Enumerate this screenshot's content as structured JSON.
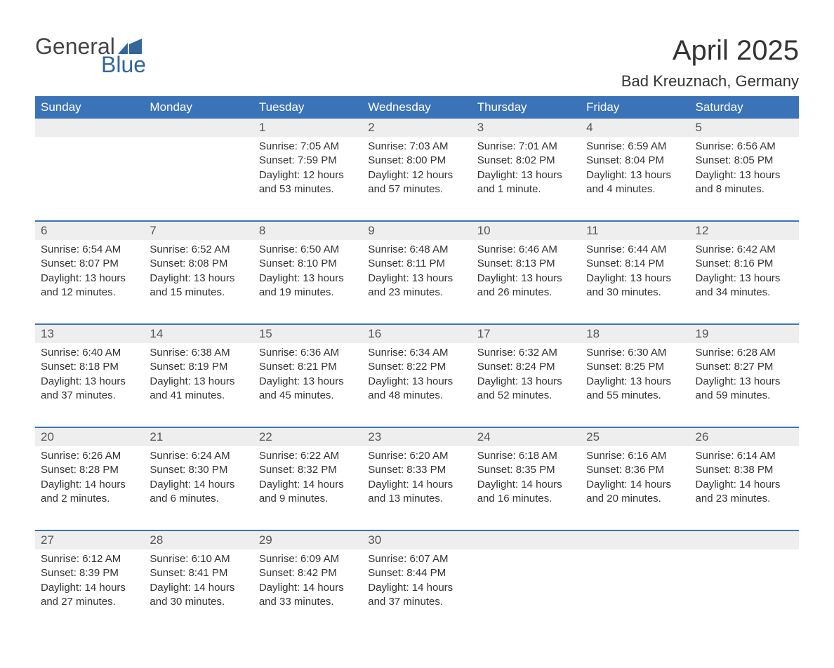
{
  "brand": {
    "part1": "General",
    "part2": "Blue",
    "accent_color": "#336699"
  },
  "title": "April 2025",
  "location": "Bad Kreuznach, Germany",
  "header_bg": "#3b73b9",
  "num_row_bg": "#eeeeee",
  "text_color": "#333333",
  "columns": [
    "Sunday",
    "Monday",
    "Tuesday",
    "Wednesday",
    "Thursday",
    "Friday",
    "Saturday"
  ],
  "weeks": [
    {
      "nums": [
        "",
        "",
        "1",
        "2",
        "3",
        "4",
        "5"
      ],
      "cells": [
        null,
        null,
        {
          "sunrise": "7:05 AM",
          "sunset": "7:59 PM",
          "daylight": "12 hours and 53 minutes."
        },
        {
          "sunrise": "7:03 AM",
          "sunset": "8:00 PM",
          "daylight": "12 hours and 57 minutes."
        },
        {
          "sunrise": "7:01 AM",
          "sunset": "8:02 PM",
          "daylight": "13 hours and 1 minute."
        },
        {
          "sunrise": "6:59 AM",
          "sunset": "8:04 PM",
          "daylight": "13 hours and 4 minutes."
        },
        {
          "sunrise": "6:56 AM",
          "sunset": "8:05 PM",
          "daylight": "13 hours and 8 minutes."
        }
      ]
    },
    {
      "nums": [
        "6",
        "7",
        "8",
        "9",
        "10",
        "11",
        "12"
      ],
      "cells": [
        {
          "sunrise": "6:54 AM",
          "sunset": "8:07 PM",
          "daylight": "13 hours and 12 minutes."
        },
        {
          "sunrise": "6:52 AM",
          "sunset": "8:08 PM",
          "daylight": "13 hours and 15 minutes."
        },
        {
          "sunrise": "6:50 AM",
          "sunset": "8:10 PM",
          "daylight": "13 hours and 19 minutes."
        },
        {
          "sunrise": "6:48 AM",
          "sunset": "8:11 PM",
          "daylight": "13 hours and 23 minutes."
        },
        {
          "sunrise": "6:46 AM",
          "sunset": "8:13 PM",
          "daylight": "13 hours and 26 minutes."
        },
        {
          "sunrise": "6:44 AM",
          "sunset": "8:14 PM",
          "daylight": "13 hours and 30 minutes."
        },
        {
          "sunrise": "6:42 AM",
          "sunset": "8:16 PM",
          "daylight": "13 hours and 34 minutes."
        }
      ]
    },
    {
      "nums": [
        "13",
        "14",
        "15",
        "16",
        "17",
        "18",
        "19"
      ],
      "cells": [
        {
          "sunrise": "6:40 AM",
          "sunset": "8:18 PM",
          "daylight": "13 hours and 37 minutes."
        },
        {
          "sunrise": "6:38 AM",
          "sunset": "8:19 PM",
          "daylight": "13 hours and 41 minutes."
        },
        {
          "sunrise": "6:36 AM",
          "sunset": "8:21 PM",
          "daylight": "13 hours and 45 minutes."
        },
        {
          "sunrise": "6:34 AM",
          "sunset": "8:22 PM",
          "daylight": "13 hours and 48 minutes."
        },
        {
          "sunrise": "6:32 AM",
          "sunset": "8:24 PM",
          "daylight": "13 hours and 52 minutes."
        },
        {
          "sunrise": "6:30 AM",
          "sunset": "8:25 PM",
          "daylight": "13 hours and 55 minutes."
        },
        {
          "sunrise": "6:28 AM",
          "sunset": "8:27 PM",
          "daylight": "13 hours and 59 minutes."
        }
      ]
    },
    {
      "nums": [
        "20",
        "21",
        "22",
        "23",
        "24",
        "25",
        "26"
      ],
      "cells": [
        {
          "sunrise": "6:26 AM",
          "sunset": "8:28 PM",
          "daylight": "14 hours and 2 minutes."
        },
        {
          "sunrise": "6:24 AM",
          "sunset": "8:30 PM",
          "daylight": "14 hours and 6 minutes."
        },
        {
          "sunrise": "6:22 AM",
          "sunset": "8:32 PM",
          "daylight": "14 hours and 9 minutes."
        },
        {
          "sunrise": "6:20 AM",
          "sunset": "8:33 PM",
          "daylight": "14 hours and 13 minutes."
        },
        {
          "sunrise": "6:18 AM",
          "sunset": "8:35 PM",
          "daylight": "14 hours and 16 minutes."
        },
        {
          "sunrise": "6:16 AM",
          "sunset": "8:36 PM",
          "daylight": "14 hours and 20 minutes."
        },
        {
          "sunrise": "6:14 AM",
          "sunset": "8:38 PM",
          "daylight": "14 hours and 23 minutes."
        }
      ]
    },
    {
      "nums": [
        "27",
        "28",
        "29",
        "30",
        "",
        "",
        ""
      ],
      "cells": [
        {
          "sunrise": "6:12 AM",
          "sunset": "8:39 PM",
          "daylight": "14 hours and 27 minutes."
        },
        {
          "sunrise": "6:10 AM",
          "sunset": "8:41 PM",
          "daylight": "14 hours and 30 minutes."
        },
        {
          "sunrise": "6:09 AM",
          "sunset": "8:42 PM",
          "daylight": "14 hours and 33 minutes."
        },
        {
          "sunrise": "6:07 AM",
          "sunset": "8:44 PM",
          "daylight": "14 hours and 37 minutes."
        },
        null,
        null,
        null
      ]
    }
  ]
}
